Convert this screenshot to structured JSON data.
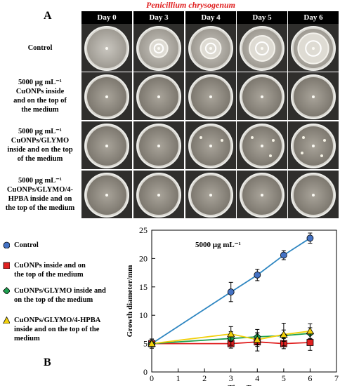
{
  "panel_a_label": "A",
  "panel_b_label": "B",
  "species": "Penicillium chrysogenum",
  "days": [
    "Day 0",
    "Day 3",
    "Day 4",
    "Day 5",
    "Day 6"
  ],
  "rows": [
    {
      "lines": [
        "Control"
      ]
    },
    {
      "lines": [
        "5000 μg mL⁻¹",
        "CuONPs inside",
        "and on the top of",
        "the medium"
      ]
    },
    {
      "lines": [
        "5000 μg mL⁻¹",
        "CuONPs/GLYMO",
        "inside and on the top",
        "of the medium"
      ]
    },
    {
      "lines": [
        "5000 μg mL⁻¹",
        "CuONPs/GLYMO/4-",
        "HPBA inside and on",
        "the top of the medium"
      ]
    }
  ],
  "legend": [
    {
      "lines": [
        "Control"
      ],
      "color": "#4472c4",
      "shape": "circle"
    },
    {
      "lines": [
        "CuONPs inside and on",
        "the top of the medium"
      ],
      "color": "#e02020",
      "shape": "square"
    },
    {
      "lines": [
        "CuONPs/GLYMO inside and",
        "on the top of the medium"
      ],
      "color": "#1fa050",
      "shape": "diamond"
    },
    {
      "lines": [
        "CuONPs/GLYMO/4-HPBA",
        "inside and on the top of the",
        "medium"
      ],
      "color": "#f2d00a",
      "shape": "triangle"
    }
  ],
  "chart_data": {
    "type": "line",
    "title": "5000 μg mL⁻¹",
    "xlabel": "Time/Day",
    "ylabel": "Growth diameter/mm",
    "xlim": [
      0,
      7
    ],
    "ylim": [
      0,
      25
    ],
    "xticks": [
      0,
      1,
      2,
      3,
      4,
      5,
      6,
      7
    ],
    "yticks": [
      0,
      5,
      10,
      15,
      20,
      25
    ],
    "x": [
      0,
      3,
      4,
      5,
      6
    ],
    "series": [
      {
        "name": "Control",
        "values": [
          5.0,
          14.1,
          17.1,
          20.6,
          23.6
        ],
        "errors": [
          0.8,
          1.7,
          1.0,
          0.8,
          0.9
        ],
        "color": "#4472c4",
        "line_color": "#2e86c1",
        "marker": "circle"
      },
      {
        "name": "CuONPs inside and on the top of the medium",
        "values": [
          5.0,
          5.0,
          5.3,
          5.0,
          5.2
        ],
        "errors": [
          0.8,
          0.8,
          1.6,
          0.9,
          1.4
        ],
        "color": "#e02020",
        "line_color": "#e02020",
        "marker": "square"
      },
      {
        "name": "CuONPs/GLYMO inside and on the top of the medium",
        "values": [
          5.0,
          5.9,
          6.2,
          6.4,
          6.8
        ],
        "errors": [
          0.8,
          1.2,
          1.3,
          1.0,
          1.0
        ],
        "color": "#1fa050",
        "line_color": "#1fa050",
        "marker": "diamond"
      },
      {
        "name": "CuONPs/GLYMO/4-HPBA inside and on the top of the medium",
        "values": [
          5.0,
          6.7,
          5.7,
          6.6,
          7.2
        ],
        "errors": [
          0.8,
          1.3,
          1.2,
          2.0,
          1.3
        ],
        "color": "#f2d00a",
        "line_color": "#f2d00a",
        "marker": "triangle"
      }
    ]
  }
}
